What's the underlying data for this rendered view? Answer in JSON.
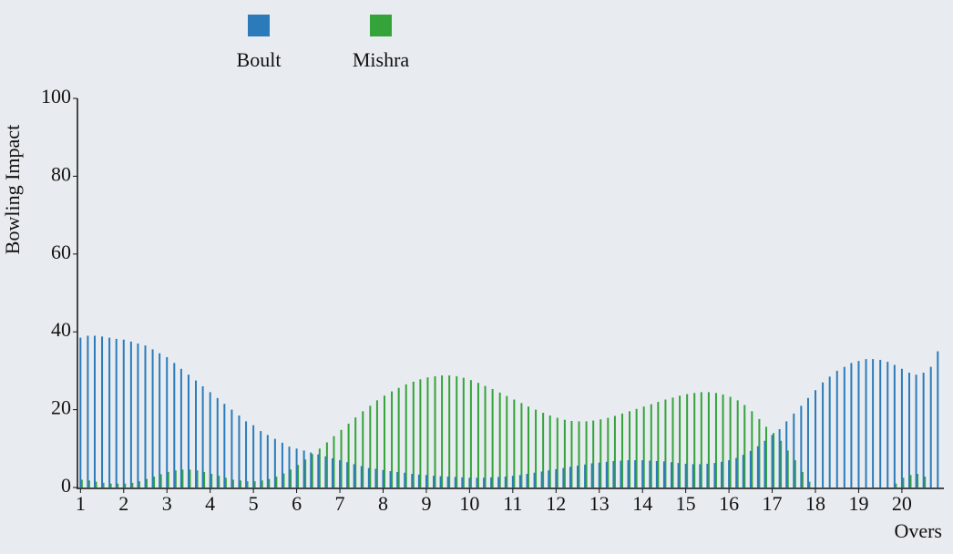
{
  "chart_data": {
    "type": "bar",
    "xlabel": "Overs",
    "ylabel": "Bowling Impact",
    "x": [
      1,
      1.17,
      1.33,
      1.5,
      1.67,
      1.83,
      2,
      2.17,
      2.33,
      2.5,
      2.67,
      2.83,
      3,
      3.17,
      3.33,
      3.5,
      3.67,
      3.83,
      4,
      4.17,
      4.33,
      4.5,
      4.67,
      4.83,
      5,
      5.17,
      5.33,
      5.5,
      5.67,
      5.83,
      6,
      6.17,
      6.33,
      6.5,
      6.67,
      6.83,
      7,
      7.17,
      7.33,
      7.5,
      7.67,
      7.83,
      8,
      8.17,
      8.33,
      8.5,
      8.67,
      8.83,
      9,
      9.17,
      9.33,
      9.5,
      9.67,
      9.83,
      10,
      10.17,
      10.33,
      10.5,
      10.67,
      10.83,
      11,
      11.17,
      11.33,
      11.5,
      11.67,
      11.83,
      12,
      12.17,
      12.33,
      12.5,
      12.67,
      12.83,
      13,
      13.17,
      13.33,
      13.5,
      13.67,
      13.83,
      14,
      14.17,
      14.33,
      14.5,
      14.67,
      14.83,
      15,
      15.17,
      15.33,
      15.5,
      15.67,
      15.83,
      16,
      16.17,
      16.33,
      16.5,
      16.67,
      16.83,
      17,
      17.17,
      17.33,
      17.5,
      17.67,
      17.83,
      18,
      18.17,
      18.33,
      18.5,
      18.67,
      18.83,
      19,
      19.17,
      19.33,
      19.5,
      19.67,
      19.83,
      20,
      20.17,
      20.33,
      20.5,
      20.67,
      20.83
    ],
    "series": [
      {
        "name": "Mishra",
        "color": "#33a33a",
        "values": [
          2,
          1.8,
          1.5,
          1.2,
          1,
          1,
          1,
          1.2,
          1.6,
          2.2,
          2.8,
          3.4,
          4,
          4.4,
          4.6,
          4.6,
          4.4,
          4,
          3.5,
          3,
          2.5,
          2,
          1.8,
          1.6,
          1.6,
          1.8,
          2.2,
          2.8,
          3.6,
          4.6,
          5.8,
          7.2,
          8.6,
          10,
          11.6,
          13.2,
          14.8,
          16.4,
          18,
          19.6,
          21,
          22.4,
          23.6,
          24.7,
          25.6,
          26.5,
          27.2,
          27.8,
          28.3,
          28.6,
          28.8,
          28.8,
          28.6,
          28.2,
          27.6,
          26.9,
          26.1,
          25.3,
          24.4,
          23.5,
          22.6,
          21.7,
          20.8,
          20,
          19.2,
          18.5,
          17.9,
          17.4,
          17.1,
          17,
          17,
          17.2,
          17.5,
          17.9,
          18.4,
          19,
          19.6,
          20.2,
          20.8,
          21.4,
          22,
          22.6,
          23.1,
          23.6,
          24,
          24.3,
          24.5,
          24.5,
          24.3,
          23.9,
          23.3,
          22.4,
          21.2,
          19.6,
          17.6,
          15.6,
          14,
          12,
          9.5,
          7,
          4,
          1.5,
          0,
          0,
          0,
          0,
          0,
          0,
          0,
          0,
          0,
          0,
          0,
          1,
          2.5,
          3.2,
          3.5,
          2.8,
          0,
          0
        ]
      },
      {
        "name": "Boult",
        "color": "#2b7bba",
        "values": [
          38.5,
          39,
          39,
          38.8,
          38.5,
          38.2,
          38,
          37.5,
          37,
          36.5,
          35.5,
          34.5,
          33.5,
          32,
          30.5,
          29,
          27.5,
          26,
          24.5,
          23,
          21.5,
          20,
          18.5,
          17,
          16,
          14.5,
          13.5,
          12.5,
          11.5,
          10.5,
          10,
          9.5,
          9,
          8.5,
          8,
          7.5,
          7,
          6.5,
          6,
          5.5,
          5,
          4.8,
          4.5,
          4.2,
          4,
          3.8,
          3.5,
          3.3,
          3.2,
          3,
          2.9,
          2.8,
          2.7,
          2.6,
          2.5,
          2.5,
          2.5,
          2.6,
          2.7,
          2.8,
          3,
          3.2,
          3.5,
          3.8,
          4.1,
          4.4,
          4.7,
          5,
          5.3,
          5.6,
          5.9,
          6.2,
          6.4,
          6.6,
          6.8,
          6.9,
          7,
          7,
          7,
          6.9,
          6.8,
          6.7,
          6.5,
          6.3,
          6.1,
          6,
          6,
          6.1,
          6.3,
          6.6,
          7,
          7.6,
          8.4,
          9.4,
          10.6,
          12,
          13.5,
          15,
          17,
          19,
          21,
          23,
          25,
          27,
          28.5,
          30,
          31,
          32,
          32.5,
          33,
          33,
          32.8,
          32.3,
          31.5,
          30.5,
          29.5,
          29,
          29.5,
          31,
          35
        ]
      }
    ],
    "xlim": [
      0.93,
      20.95
    ],
    "xticks": [
      1,
      2,
      3,
      4,
      5,
      6,
      7,
      8,
      9,
      10,
      11,
      12,
      13,
      14,
      15,
      16,
      17,
      18,
      19,
      20
    ],
    "ylim": [
      0,
      100
    ],
    "yticks": [
      0,
      20,
      40,
      60,
      80,
      100
    ]
  }
}
